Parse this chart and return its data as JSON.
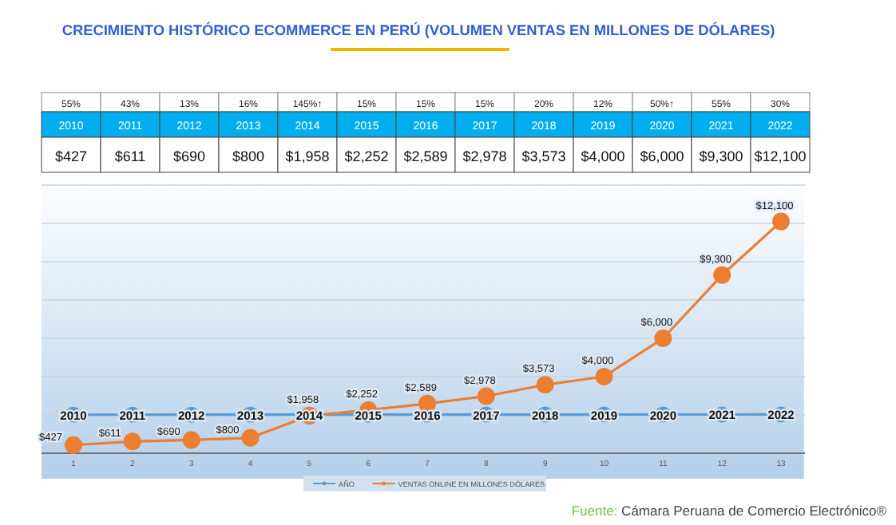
{
  "chart_data": {
    "type": "line",
    "title": "CRECIMIENTO HISTÓRICO ECOMMERCE EN PERÚ (VOLUMEN VENTAS EN MILLONES DE DÓLARES)",
    "categories": [
      "1",
      "2",
      "3",
      "4",
      "5",
      "6",
      "7",
      "8",
      "9",
      "10",
      "11",
      "12",
      "13"
    ],
    "series": [
      {
        "name": "AÑO",
        "color": "#5b9bd5",
        "values": [
          2010,
          2011,
          2012,
          2013,
          2014,
          2015,
          2016,
          2017,
          2018,
          2019,
          2020,
          2021,
          2022
        ],
        "value_labels": [
          "2010",
          "2011",
          "2012",
          "2013",
          "2014",
          "2015",
          "2016",
          "2017",
          "2018",
          "2019",
          "2020",
          "2021",
          "2022"
        ]
      },
      {
        "name": "VENTAS ONLINE EN MILLONES DÓLARES",
        "color": "#ed7d31",
        "values": [
          427,
          611,
          690,
          800,
          1958,
          2252,
          2589,
          2978,
          3573,
          4000,
          6000,
          9300,
          12100
        ],
        "value_labels": [
          "$427",
          "$611",
          "$690",
          "$800",
          "$1,958",
          "$2,252",
          "$2,589",
          "$2,978",
          "$3,573",
          "$4,000",
          "$6,000",
          "$9,300",
          "$12,100"
        ]
      }
    ],
    "ylim": [
      0,
      14000
    ],
    "yticks": [
      {
        "value": 0,
        "label": null
      },
      {
        "value": 2000,
        "label": null
      },
      {
        "value": 4000,
        "label": null
      },
      {
        "value": 6000,
        "label": null
      },
      {
        "value": 8000,
        "label": null
      },
      {
        "value": 10000,
        "label": null
      },
      {
        "value": 12000,
        "label": null
      },
      {
        "value": 14000,
        "label": null
      }
    ],
    "tick_labels": "x",
    "grid": "y",
    "legend": "bottom",
    "marker": "circle",
    "line_style": "solid",
    "annotations": [
      "55%",
      "43%",
      "13%",
      "16%",
      "145%↑",
      "15%",
      "15%",
      "15%",
      "20%",
      "12%",
      "50%↑",
      "55%",
      "30%",
      "Fuente: Cámara Peruana de Comercio Electrónico®"
    ]
  }
}
